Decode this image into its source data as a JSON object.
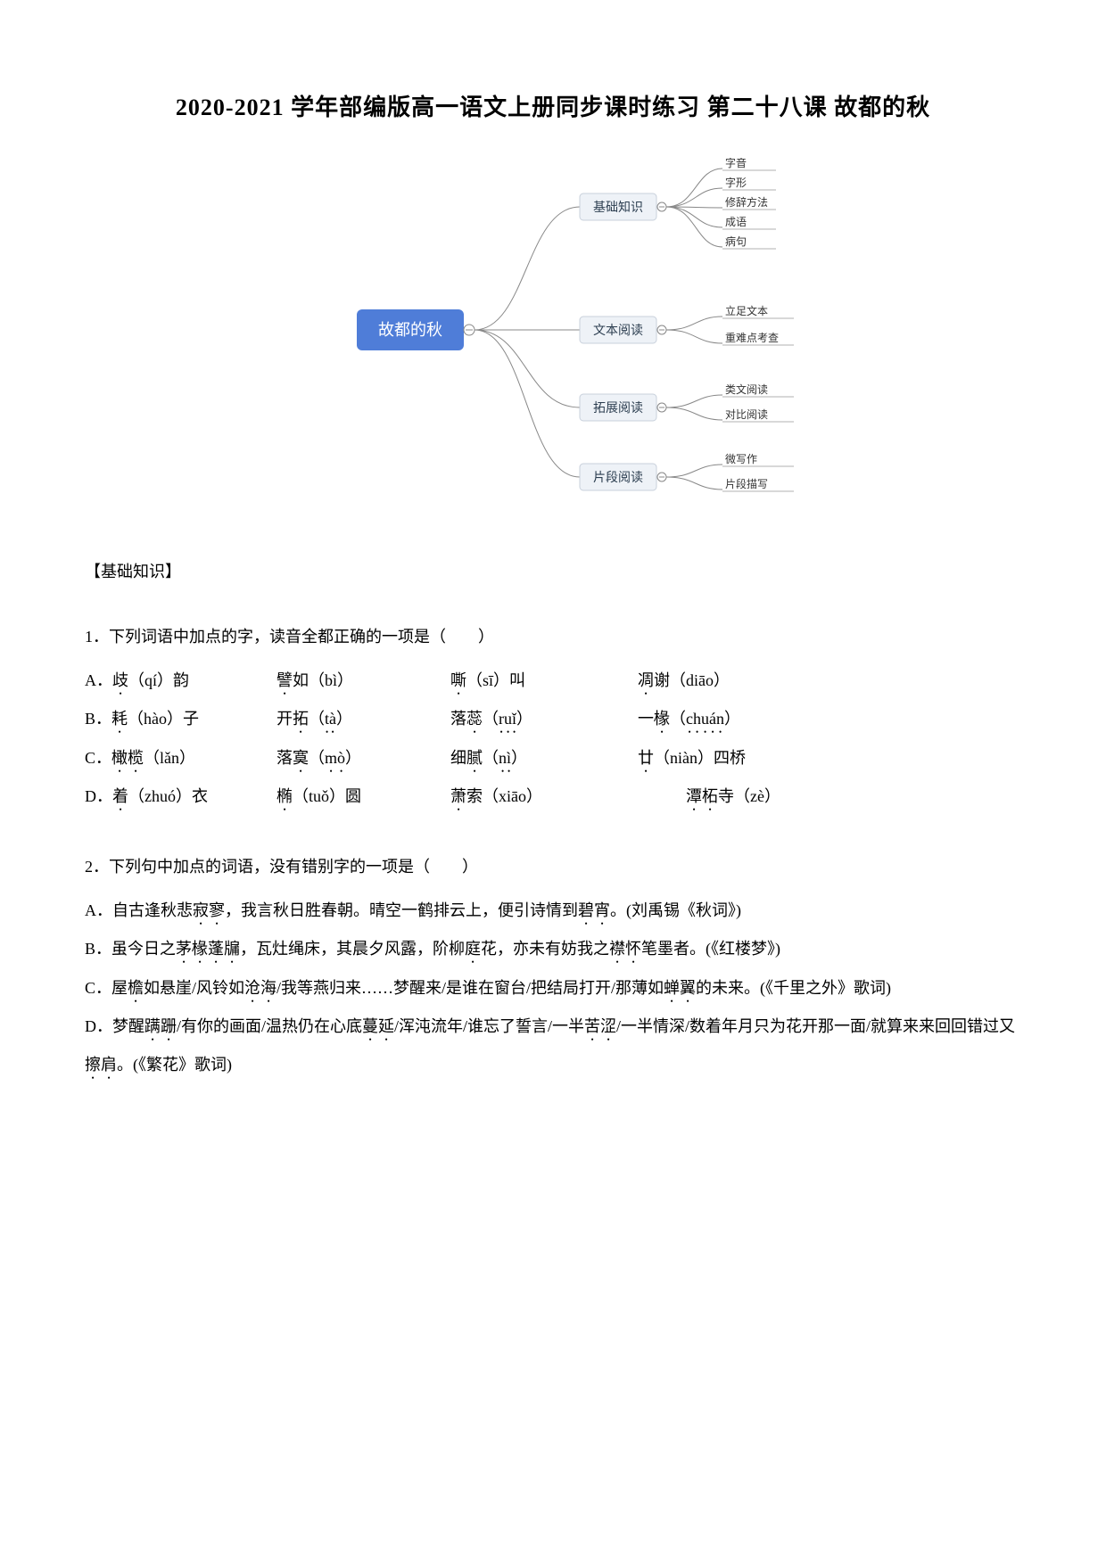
{
  "title": "2020-2021 学年部编版高一语文上册同步课时练习 第二十八课 故都的秋",
  "mindmap": {
    "root": "故都的秋",
    "colors": {
      "root_bg": "#4f7dd8",
      "root_text": "#ffffff",
      "l2_bg": "#eef2f7",
      "l2_border": "#c8d0db",
      "l2_text": "#2c3e50",
      "l3_text": "#333333",
      "line": "#888888"
    },
    "level2": [
      {
        "label": "基础知识",
        "children": [
          "字音",
          "字形",
          "修辞方法",
          "成语",
          "病句"
        ]
      },
      {
        "label": "文本阅读",
        "children": [
          "立足文本",
          "重难点考查"
        ]
      },
      {
        "label": "拓展阅读",
        "children": [
          "类文阅读",
          "对比阅读"
        ]
      },
      {
        "label": "片段阅读",
        "children": [
          "微写作",
          "片段描写"
        ]
      }
    ]
  },
  "section_header": "【基础知识】",
  "q1": {
    "prompt": "1．下列词语中加点的字，读音全都正确的一项是（　　）",
    "rows": [
      {
        "label": "A．",
        "c0a": "歧",
        "c0b": "（qí）韵",
        "c1a": "譬",
        "c1b": "如（bì）",
        "c2a": "嘶",
        "c2b": "（sī）叫",
        "c3a": "凋",
        "c3b": "谢（diāo）"
      },
      {
        "label": "B．",
        "c0a": "耗",
        "c0b": "（hào）子",
        "c1a": "开",
        "c1b": "拓（tà）",
        "c2a": "落",
        "c2b": "蕊（ruǐ）",
        "c3a": "一",
        "c3b": "椽（chuán）"
      },
      {
        "label": "C．",
        "c0a": "橄榄",
        "c0b": "（lǎn）",
        "c1a": "落",
        "c1b": "寞（mò）",
        "c2a": "细",
        "c2b": "腻（nì）",
        "c3a": "廿",
        "c3b": "（niàn）四桥"
      },
      {
        "label": "D．",
        "c0a": "着",
        "c0b": "（zhuó）衣",
        "c1a": "椭",
        "c1b": "（tuǒ）圆",
        "c2a": "萧",
        "c2b": "索（xiāo）",
        "c3a": "潭柘",
        "c3b": "寺（zè）"
      }
    ]
  },
  "q2": {
    "prompt": "2．下列句中加点的词语，没有错别字的一项是（　　）",
    "options": [
      {
        "label": "A．",
        "segments": [
          "自古逢秋悲",
          "寂寥",
          "，我言秋日胜春朝。晴空一鹤排云上，便引诗情到",
          "碧宵",
          "。(刘禹锡《秋词》)"
        ],
        "dots": [
          1,
          3
        ]
      },
      {
        "label": "B．",
        "segments": [
          "虽今日之",
          "茅椽蓬牖",
          "，瓦灶绳床，其晨夕风露，阶柳",
          "庭",
          "花，亦未有妨我之",
          "襟怀",
          "笔墨者。(《红楼梦》)"
        ],
        "dots": [
          1,
          3,
          5
        ]
      },
      {
        "label": "C．",
        "segments": [
          "屋",
          "檐",
          "如悬崖/风铃如",
          "沧海",
          "/我等燕归来……梦醒来/是谁在窗台/把结局打开/那薄如",
          "蝉翼",
          "的未来。(《千里之外》歌词)"
        ],
        "dots": [
          1,
          3,
          5
        ]
      },
      {
        "label": "D．",
        "segments": [
          "梦醒",
          "蹒跚",
          "/有你的画面/温热仍在心底",
          "蔓延",
          "/浑沌流年/谁忘了誓言/一半",
          "苦涩",
          "/一半情深/数着年月只为花开那一面/就算来来回回错过又",
          "擦肩",
          "。(《繁花》歌词)"
        ],
        "dots": [
          1,
          3,
          5,
          7
        ]
      }
    ]
  }
}
